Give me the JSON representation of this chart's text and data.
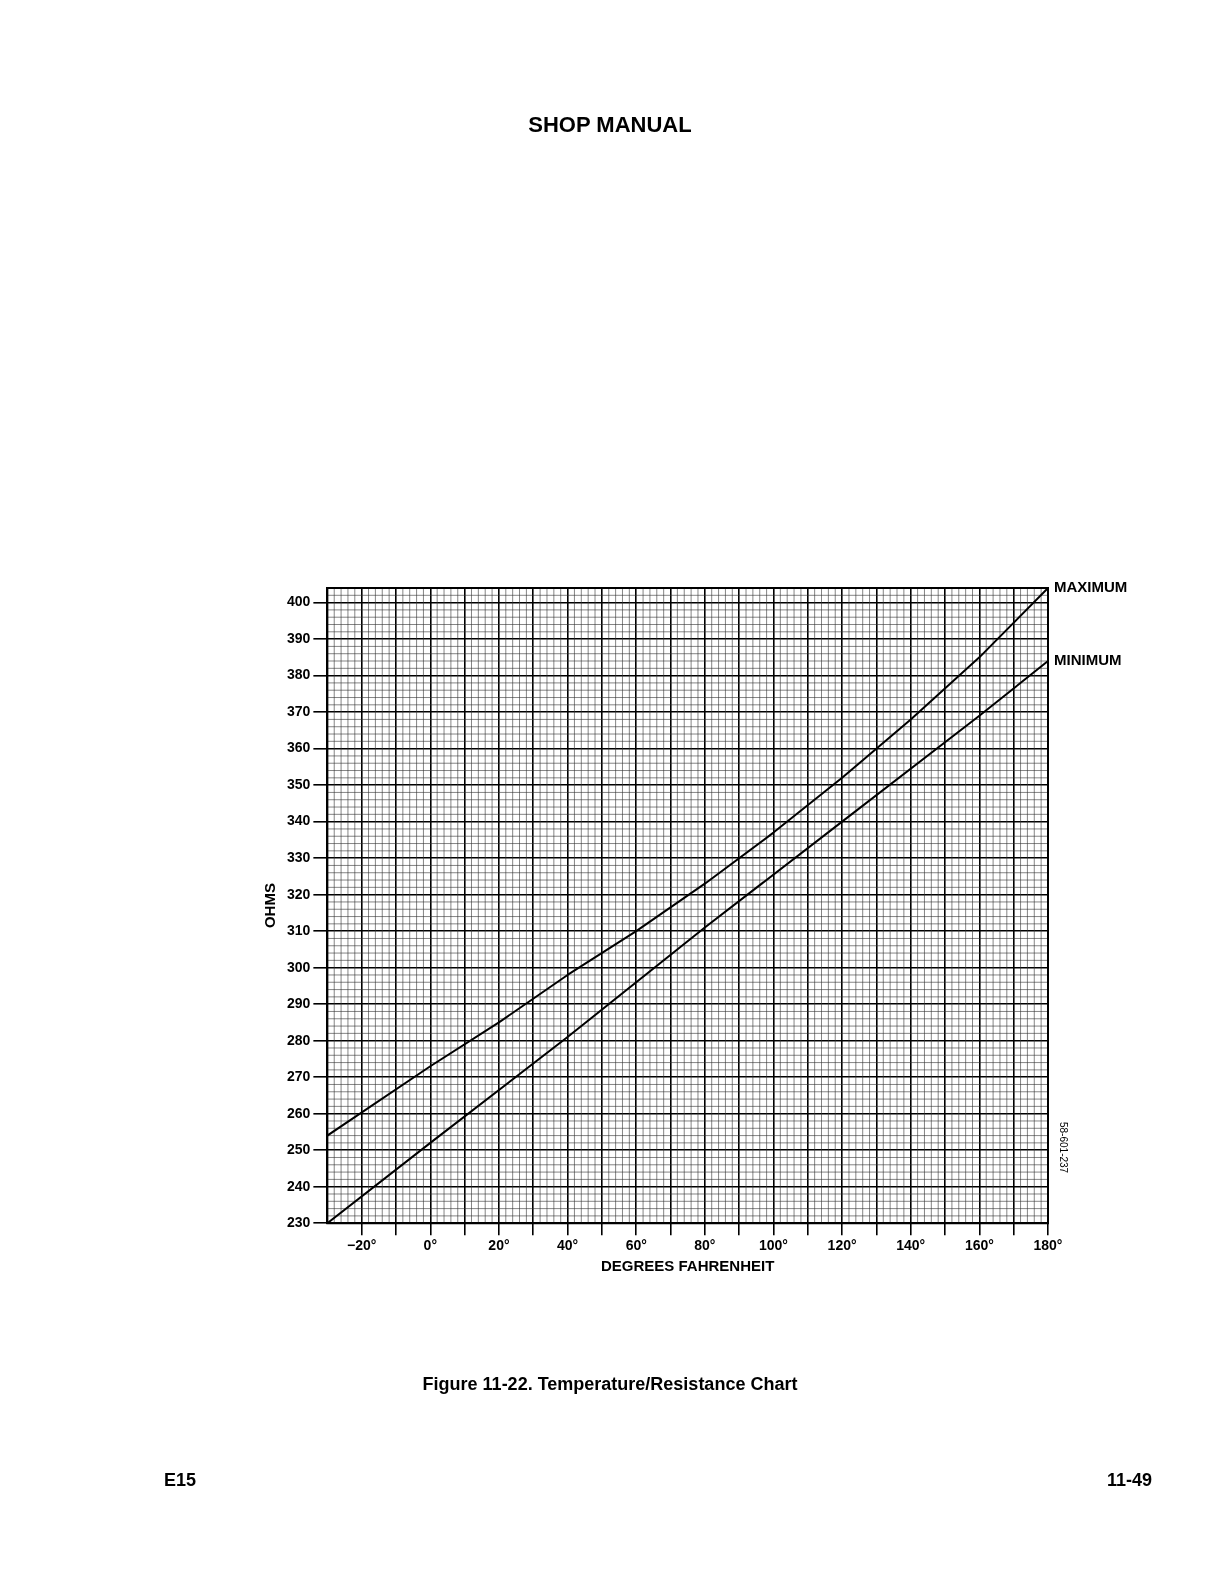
{
  "chart_data": {
    "type": "line",
    "title": "SHOP MANUAL",
    "xlabel": "DEGREES FAHRENHEIT",
    "ylabel": "OHMS",
    "annotations": [
      "Figure 11-22. Temperature/Resistance Chart",
      "E15",
      "11-49",
      "58-601-237"
    ],
    "series": [
      {
        "name": "MAXIMUM",
        "color": "#000000",
        "x": [
          -30,
          0,
          20,
          40,
          60,
          80,
          100,
          120,
          140,
          160,
          180
        ],
        "values": [
          254,
          273,
          285,
          298,
          310,
          323,
          337,
          352,
          368,
          385,
          404
        ]
      },
      {
        "name": "MINIMUM",
        "color": "#000000",
        "x": [
          -30,
          0,
          40,
          80,
          120,
          160,
          180
        ],
        "values": [
          230,
          252,
          281,
          311,
          340,
          369,
          384
        ]
      }
    ],
    "xlim": [
      -30,
      180
    ],
    "xticks": [
      {
        "value": -20,
        "label": "−20°"
      },
      {
        "value": -10,
        "label": null
      },
      {
        "value": 0,
        "label": "0°"
      },
      {
        "value": 10,
        "label": null
      },
      {
        "value": 20,
        "label": "20°"
      },
      {
        "value": 30,
        "label": null
      },
      {
        "value": 40,
        "label": "40°"
      },
      {
        "value": 50,
        "label": null
      },
      {
        "value": 60,
        "label": "60°"
      },
      {
        "value": 70,
        "label": null
      },
      {
        "value": 80,
        "label": "80°"
      },
      {
        "value": 90,
        "label": null
      },
      {
        "value": 100,
        "label": "100°"
      },
      {
        "value": 110,
        "label": null
      },
      {
        "value": 120,
        "label": "120°"
      },
      {
        "value": 130,
        "label": null
      },
      {
        "value": 140,
        "label": "140°"
      },
      {
        "value": 150,
        "label": null
      },
      {
        "value": 160,
        "label": "160°"
      },
      {
        "value": 170,
        "label": null
      },
      {
        "value": 180,
        "label": "180°"
      }
    ],
    "ylim": [
      230,
      404
    ],
    "yticks": [
      230,
      240,
      250,
      260,
      270,
      280,
      290,
      300,
      310,
      320,
      330,
      340,
      350,
      360,
      370,
      380,
      390,
      400
    ],
    "grid": true,
    "legend": false,
    "marker": "none",
    "line_style": "solid"
  }
}
